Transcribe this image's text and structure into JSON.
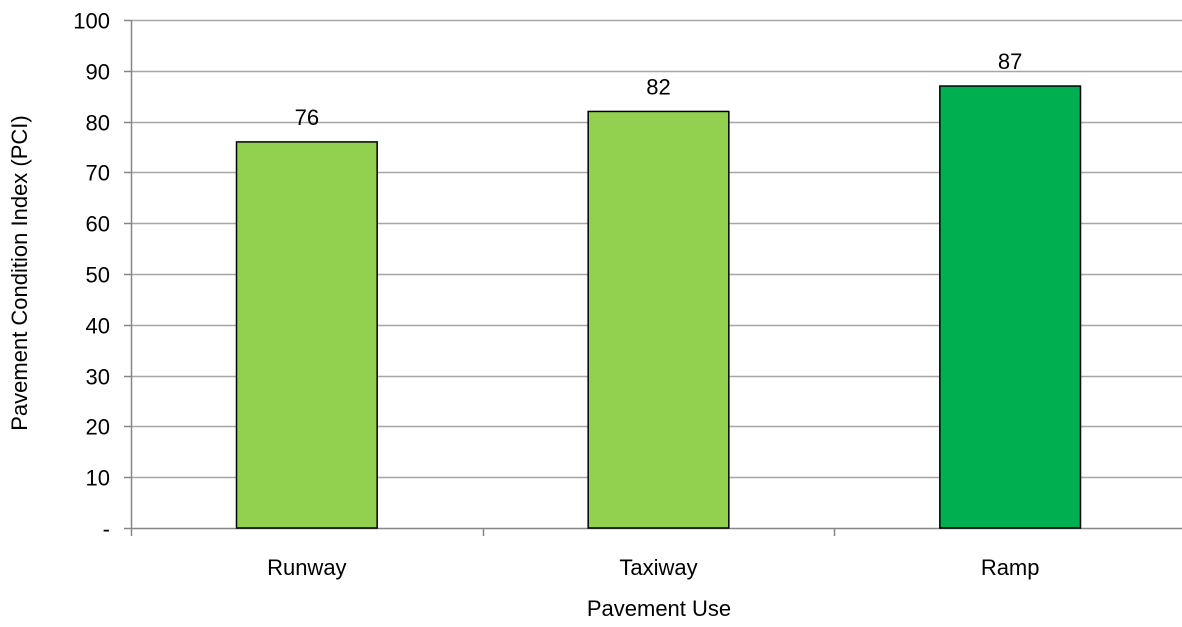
{
  "chart_data": {
    "type": "bar",
    "title": "",
    "xlabel": "Pavement Use",
    "ylabel": "Pavement Condition Index (PCI)",
    "categories": [
      "Runway",
      "Taxiway",
      "Ramp"
    ],
    "values": [
      76,
      82,
      87
    ],
    "data_labels": [
      "76",
      "82",
      "87"
    ],
    "bar_colors": [
      "#92d050",
      "#92d050",
      "#00b050"
    ],
    "bar_outline_color": "#000000",
    "ylim": [
      0,
      100
    ],
    "yticks": [
      0,
      10,
      20,
      30,
      40,
      50,
      60,
      70,
      80,
      90,
      100
    ],
    "ytick_labels": [
      "-",
      "10",
      "20",
      "30",
      "40",
      "50",
      "60",
      "70",
      "80",
      "90",
      "100"
    ],
    "grid": "horizontal",
    "gridline_color": "#a6a6a6",
    "legend": "none"
  }
}
